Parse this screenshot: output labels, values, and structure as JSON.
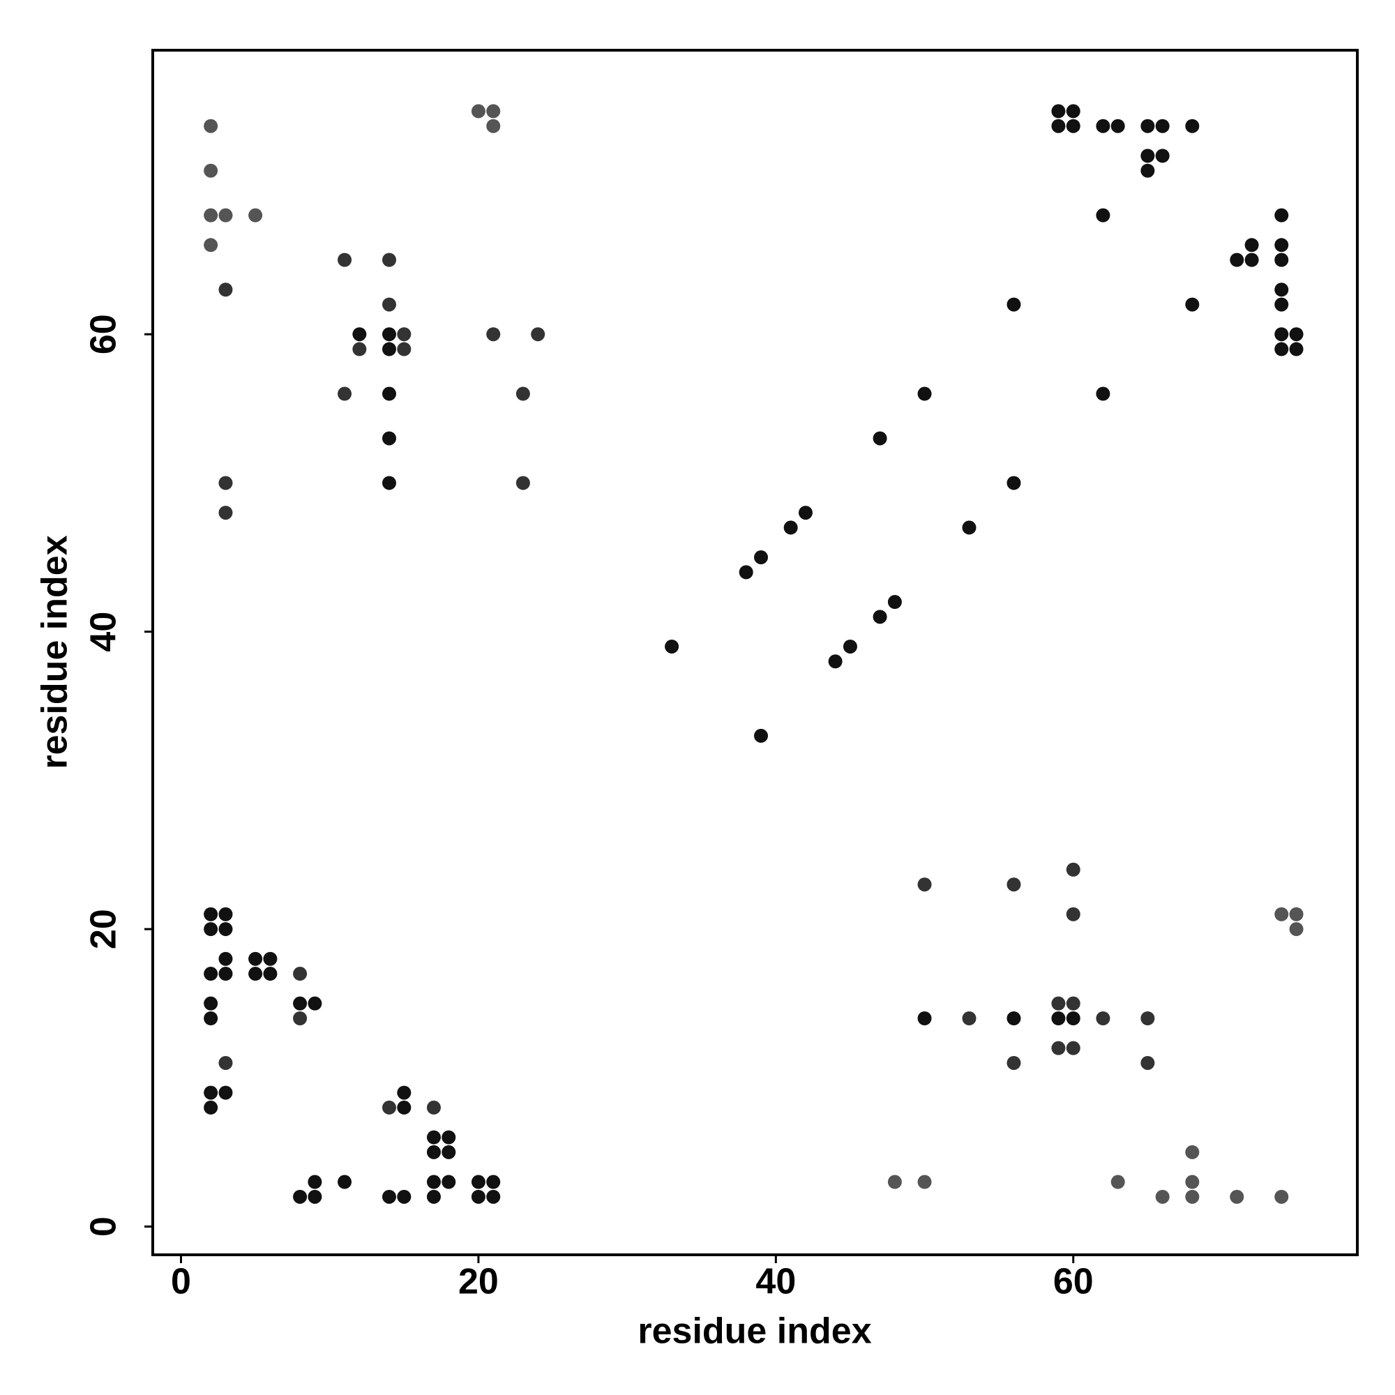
{
  "chart_data": {
    "type": "scatter",
    "x_label": "residue index",
    "y_label": "residue index",
    "xlim": [
      -1.9,
      79.1
    ],
    "ylim": [
      -1.9,
      79.1
    ],
    "xticks": [
      0,
      20,
      40,
      60
    ],
    "yticks": [
      0,
      20,
      40,
      60
    ],
    "x": [
      2,
      2,
      2,
      3,
      5,
      2,
      3,
      3,
      3,
      11,
      14,
      14,
      12,
      14,
      15,
      12,
      14,
      15,
      11,
      14,
      14,
      14,
      20,
      21,
      21,
      21,
      24,
      23,
      23,
      33,
      39,
      38,
      39,
      41,
      42,
      44,
      45,
      47,
      48,
      47,
      50,
      53,
      56,
      56,
      59,
      60,
      59,
      60,
      62,
      63,
      65,
      66,
      68,
      65,
      66,
      65,
      62,
      68,
      62,
      71,
      72,
      72,
      74,
      74,
      74,
      74,
      74,
      74,
      75,
      74,
      75,
      50,
      56,
      60,
      60,
      74,
      75,
      75,
      50,
      53,
      56,
      56,
      59,
      60,
      59,
      60,
      62,
      65,
      59,
      60,
      65,
      48,
      50,
      63,
      66,
      68,
      68,
      68,
      71,
      74,
      2,
      3,
      2,
      3,
      3,
      5,
      6,
      2,
      3,
      5,
      6,
      8,
      2,
      8,
      9,
      2,
      8,
      3,
      2,
      3,
      2,
      14,
      15,
      15,
      17,
      17,
      18,
      17,
      18,
      17,
      18,
      17,
      20,
      21,
      20,
      21,
      8,
      9,
      9,
      11,
      14,
      15
    ],
    "values": [
      74,
      71,
      68,
      68,
      68,
      66,
      63,
      50,
      48,
      65,
      65,
      62,
      60,
      60,
      60,
      59,
      59,
      59,
      56,
      56,
      53,
      50,
      75,
      75,
      74,
      60,
      60,
      56,
      50,
      39,
      33,
      44,
      45,
      47,
      48,
      38,
      39,
      41,
      42,
      53,
      56,
      47,
      50,
      62,
      75,
      75,
      74,
      74,
      74,
      74,
      74,
      74,
      74,
      72,
      72,
      71,
      68,
      62,
      56,
      65,
      65,
      66,
      68,
      66,
      65,
      63,
      62,
      60,
      60,
      59,
      59,
      23,
      23,
      24,
      21,
      21,
      21,
      20,
      14,
      14,
      14,
      11,
      15,
      15,
      14,
      14,
      14,
      14,
      12,
      12,
      11,
      3,
      3,
      3,
      2,
      5,
      3,
      2,
      2,
      2,
      21,
      21,
      20,
      20,
      18,
      18,
      18,
      17,
      17,
      17,
      17,
      17,
      15,
      15,
      15,
      14,
      14,
      11,
      9,
      9,
      8,
      8,
      9,
      8,
      8,
      6,
      6,
      5,
      5,
      3,
      3,
      2,
      3,
      3,
      2,
      2,
      2,
      2,
      3,
      3,
      2,
      2
    ],
    "colors": [
      "#555",
      "#555",
      "#555",
      "#555",
      "#555",
      "#555",
      "#333",
      "#333",
      "#333",
      "#333",
      "#333",
      "#333",
      "#111",
      "#111",
      "#333",
      "#333",
      "#111",
      "#333",
      "#333",
      "#111",
      "#111",
      "#111",
      "#555",
      "#555",
      "#555",
      "#333",
      "#333",
      "#333",
      "#333",
      "#111",
      "#111",
      "#111",
      "#111",
      "#111",
      "#111",
      "#111",
      "#111",
      "#111",
      "#111",
      "#111",
      "#111",
      "#111",
      "#111",
      "#111",
      "#111",
      "#111",
      "#111",
      "#111",
      "#111",
      "#111",
      "#111",
      "#111",
      "#111",
      "#111",
      "#111",
      "#111",
      "#111",
      "#111",
      "#111",
      "#111",
      "#111",
      "#111",
      "#111",
      "#111",
      "#111",
      "#111",
      "#111",
      "#111",
      "#111",
      "#111",
      "#111",
      "#333",
      "#333",
      "#333",
      "#333",
      "#555",
      "#555",
      "#555",
      "#111",
      "#333",
      "#111",
      "#333",
      "#333",
      "#333",
      "#111",
      "#111",
      "#333",
      "#333",
      "#333",
      "#333",
      "#333",
      "#555",
      "#555",
      "#555",
      "#555",
      "#555",
      "#555",
      "#555",
      "#555",
      "#555",
      "#111",
      "#111",
      "#111",
      "#111",
      "#111",
      "#111",
      "#111",
      "#111",
      "#111",
      "#111",
      "#111",
      "#333",
      "#111",
      "#111",
      "#111",
      "#111",
      "#333",
      "#333",
      "#111",
      "#111",
      "#111",
      "#333",
      "#111",
      "#111",
      "#333",
      "#111",
      "#111",
      "#111",
      "#111",
      "#111",
      "#111",
      "#111",
      "#111",
      "#111",
      "#111",
      "#111",
      "#111",
      "#111",
      "#111",
      "#111",
      "#111",
      "#111"
    ]
  }
}
